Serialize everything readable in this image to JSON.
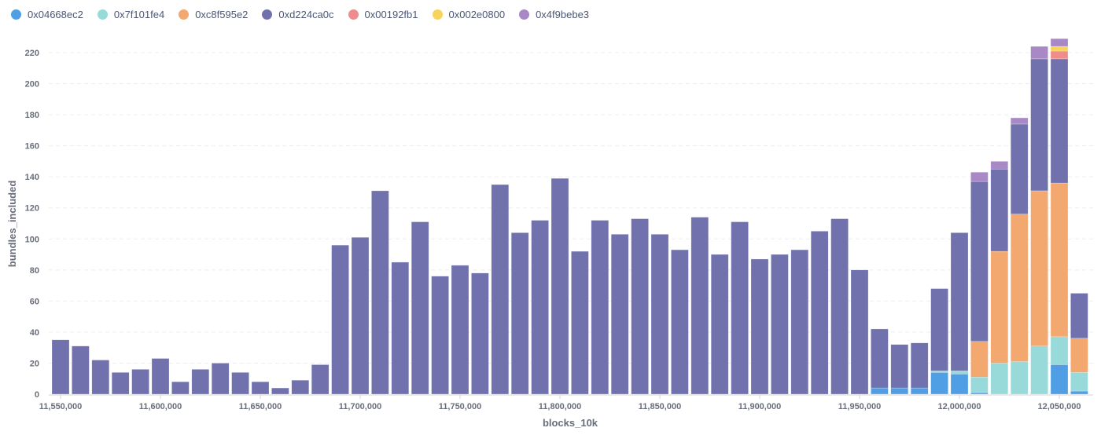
{
  "chart_data": {
    "type": "bar",
    "stacked": true,
    "xlabel": "blocks_10k",
    "ylabel": "bundles_included",
    "ylim": [
      0,
      220
    ],
    "y_ticks": [
      0,
      20,
      40,
      60,
      80,
      100,
      120,
      140,
      160,
      180,
      200,
      220
    ],
    "x_ticks": [
      "11,550,000",
      "11,600,000",
      "11,650,000",
      "11,700,000",
      "11,750,000",
      "11,800,000",
      "11,850,000",
      "11,900,000",
      "11,950,000",
      "12,000,000",
      "12,050,000"
    ],
    "x_tick_values": [
      11550000,
      11600000,
      11650000,
      11700000,
      11750000,
      11800000,
      11850000,
      11900000,
      11950000,
      12000000,
      12050000
    ],
    "grid": "horizontal dashed",
    "legend_placement": "top-left",
    "x": [
      11550000,
      11560000,
      11570000,
      11580000,
      11590000,
      11600000,
      11610000,
      11620000,
      11630000,
      11640000,
      11650000,
      11660000,
      11670000,
      11680000,
      11690000,
      11700000,
      11710000,
      11720000,
      11730000,
      11740000,
      11750000,
      11760000,
      11770000,
      11780000,
      11790000,
      11800000,
      11810000,
      11820000,
      11830000,
      11840000,
      11850000,
      11860000,
      11870000,
      11880000,
      11890000,
      11900000,
      11910000,
      11920000,
      11930000,
      11940000,
      11950000,
      11960000,
      11970000,
      11980000,
      11990000,
      12000000,
      12010000,
      12020000,
      12030000,
      12040000,
      12050000,
      12060000
    ],
    "series": [
      {
        "name": "0x04668ec2",
        "color": "#509ee3",
        "values": [
          0,
          0,
          0,
          0,
          0,
          0,
          0,
          0,
          0,
          0,
          0,
          0,
          0,
          0,
          0,
          0,
          0,
          0,
          0,
          0,
          0,
          0,
          0,
          0,
          0,
          0,
          0,
          0,
          0,
          0,
          0,
          0,
          0,
          0,
          0,
          0,
          0,
          0,
          0,
          0,
          0,
          4,
          4,
          4,
          14,
          13,
          1,
          0,
          0,
          0,
          19,
          2
        ]
      },
      {
        "name": "0x7f101fe4",
        "color": "#98d9d9",
        "values": [
          0,
          0,
          0,
          0,
          0,
          0,
          0,
          0,
          0,
          0,
          0,
          0,
          0,
          0,
          0,
          0,
          0,
          0,
          0,
          0,
          0,
          0,
          0,
          0,
          0,
          0,
          0,
          0,
          0,
          0,
          0,
          0,
          0,
          0,
          0,
          0,
          0,
          0,
          0,
          0,
          0,
          0,
          0,
          0,
          1,
          2,
          10,
          20,
          21,
          31,
          18,
          12
        ]
      },
      {
        "name": "0xc8f595e2",
        "color": "#f2a86f",
        "values": [
          0,
          0,
          0,
          0,
          0,
          0,
          0,
          0,
          0,
          0,
          0,
          0,
          0,
          0,
          0,
          0,
          0,
          0,
          0,
          0,
          0,
          0,
          0,
          0,
          0,
          0,
          0,
          0,
          0,
          0,
          0,
          0,
          0,
          0,
          0,
          0,
          0,
          0,
          0,
          0,
          0,
          0,
          0,
          0,
          0,
          0,
          23,
          72,
          95,
          100,
          99,
          22
        ]
      },
      {
        "name": "0xd224ca0c",
        "color": "#7172ad",
        "values": [
          35,
          31,
          22,
          14,
          16,
          23,
          8,
          16,
          20,
          14,
          8,
          4,
          9,
          19,
          96,
          101,
          131,
          85,
          111,
          76,
          83,
          78,
          135,
          104,
          112,
          139,
          92,
          112,
          103,
          113,
          103,
          93,
          114,
          90,
          111,
          87,
          90,
          93,
          105,
          113,
          80,
          38,
          28,
          29,
          53,
          89,
          103,
          53,
          58,
          85,
          80,
          29
        ]
      },
      {
        "name": "0x00192fb1",
        "color": "#ef8c8c",
        "values": [
          0,
          0,
          0,
          0,
          0,
          0,
          0,
          0,
          0,
          0,
          0,
          0,
          0,
          0,
          0,
          0,
          0,
          0,
          0,
          0,
          0,
          0,
          0,
          0,
          0,
          0,
          0,
          0,
          0,
          0,
          0,
          0,
          0,
          0,
          0,
          0,
          0,
          0,
          0,
          0,
          0,
          0,
          0,
          0,
          0,
          0,
          0,
          0,
          0,
          0,
          5,
          0
        ]
      },
      {
        "name": "0x002e0800",
        "color": "#f9d45c",
        "values": [
          0,
          0,
          0,
          0,
          0,
          0,
          0,
          0,
          0,
          0,
          0,
          0,
          0,
          0,
          0,
          0,
          0,
          0,
          0,
          0,
          0,
          0,
          0,
          0,
          0,
          0,
          0,
          0,
          0,
          0,
          0,
          0,
          0,
          0,
          0,
          0,
          0,
          0,
          0,
          0,
          0,
          0,
          0,
          0,
          0,
          0,
          0,
          0,
          0,
          0,
          3,
          0
        ]
      },
      {
        "name": "0x4f9bebe3",
        "color": "#a989c5",
        "values": [
          0,
          0,
          0,
          0,
          0,
          0,
          0,
          0,
          0,
          0,
          0,
          0,
          0,
          0,
          0,
          0,
          0,
          0,
          0,
          0,
          0,
          0,
          0,
          0,
          0,
          0,
          0,
          0,
          0,
          0,
          0,
          0,
          0,
          0,
          0,
          0,
          0,
          0,
          0,
          0,
          0,
          0,
          0,
          0,
          0,
          0,
          6,
          5,
          4,
          8,
          5,
          0
        ]
      }
    ]
  }
}
